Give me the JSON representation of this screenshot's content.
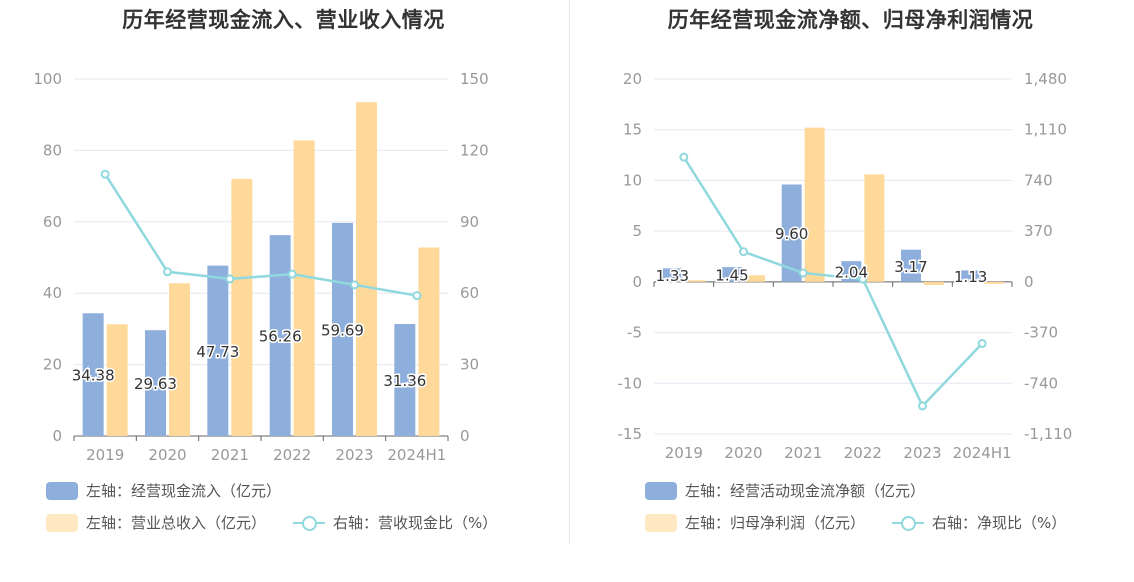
{
  "colors": {
    "blue": "#8eaedb",
    "orange": "#ffd99a",
    "line": "#8fd8de",
    "grid": "#e6e8f2",
    "axis": "#999999",
    "label": "#333333"
  },
  "chart_data": [
    {
      "type": "bar",
      "title": "历年经营现金流入、营业收入情况",
      "categories": [
        "2019",
        "2020",
        "2021",
        "2022",
        "2023",
        "2024H1"
      ],
      "left_axis": {
        "ylim": [
          0,
          100
        ],
        "ticks": [
          "0",
          "20",
          "40",
          "60",
          "80",
          "100"
        ]
      },
      "right_axis": {
        "ylim": [
          0,
          150
        ],
        "ticks": [
          "0",
          "30",
          "60",
          "90",
          "120",
          "150"
        ]
      },
      "series": [
        {
          "name": "左轴：经营现金流入（亿元）",
          "axis": "left",
          "kind": "bar",
          "color": "#8eaedb",
          "values": [
            34.38,
            29.63,
            47.73,
            56.26,
            59.69,
            31.36
          ],
          "labels": [
            "34.38",
            "29.63",
            "47.73",
            "56.26",
            "59.69",
            "31.36"
          ]
        },
        {
          "name": "左轴：营业总收入（亿元）",
          "axis": "left",
          "kind": "bar",
          "color": "#ffd99a",
          "values": [
            31.3,
            42.8,
            72.0,
            82.8,
            93.5,
            52.8
          ]
        },
        {
          "name": "右轴：营收现金比（%）",
          "axis": "right",
          "kind": "line",
          "color": "#8fd8de",
          "values": [
            110.0,
            69.0,
            66.0,
            68.0,
            63.5,
            59.0
          ]
        }
      ]
    },
    {
      "type": "bar",
      "title": "历年经营现金流净额、归母净利润情况",
      "categories": [
        "2019",
        "2020",
        "2021",
        "2022",
        "2023",
        "2024H1"
      ],
      "left_axis": {
        "ylim": [
          -15,
          20
        ],
        "ticks": [
          "-15",
          "-10",
          "-5",
          "0",
          "5",
          "10",
          "15",
          "20"
        ]
      },
      "right_axis": {
        "ylim": [
          -1110,
          1480
        ],
        "ticks": [
          "-1,110",
          "-740",
          "-370",
          "0",
          "370",
          "740",
          "1,110",
          "1,480"
        ]
      },
      "series": [
        {
          "name": "左轴：经营活动现金流净额（亿元）",
          "axis": "left",
          "kind": "bar",
          "color": "#8eaedb",
          "values": [
            1.33,
            1.45,
            9.6,
            2.04,
            3.17,
            1.13
          ],
          "labels": [
            "1.33",
            "1.45",
            "9.60",
            "2.04",
            "3.17",
            "1.13"
          ]
        },
        {
          "name": "左轴：归母净利润（亿元）",
          "axis": "left",
          "kind": "bar",
          "color": "#ffd99a",
          "values": [
            0.15,
            0.65,
            15.2,
            10.6,
            -0.3,
            -0.2
          ]
        },
        {
          "name": "右轴：净现比（%）",
          "axis": "right",
          "kind": "line",
          "color": "#8fd8de",
          "values": [
            910,
            220,
            65,
            20,
            -905,
            -450
          ]
        }
      ]
    }
  ]
}
